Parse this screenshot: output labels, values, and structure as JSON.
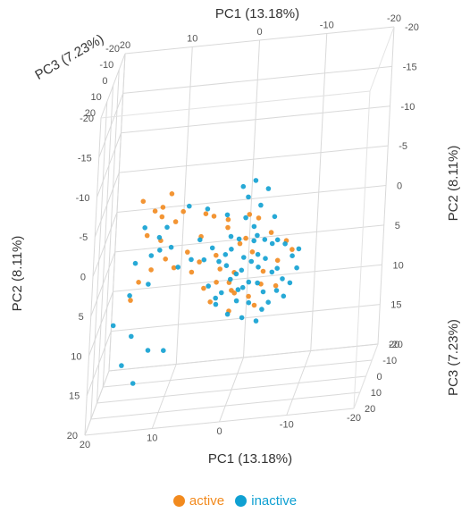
{
  "chart_data": {
    "type": "scatter",
    "projection": "3d",
    "title": "",
    "axes": {
      "x": {
        "label": "PC1 (13.18%)",
        "range": [
          20,
          -20
        ],
        "ticks": [
          "20",
          "10",
          "0",
          "-10",
          "-20"
        ]
      },
      "y": {
        "label": "PC2 (8.11%)",
        "range": [
          -20,
          20
        ],
        "ticks": [
          "-20",
          "-15",
          "-10",
          "-5",
          "0",
          "5",
          "10",
          "15",
          "20"
        ]
      },
      "z": {
        "label": "PC3 (7.23%)",
        "range": [
          -20,
          20
        ],
        "ticks": [
          "-20",
          "-10",
          "0",
          "10",
          "20"
        ]
      }
    },
    "grid": true,
    "legend": {
      "placement": "bottom"
    },
    "series": [
      {
        "name": "active",
        "color": "#F28A1E",
        "points": [
          [
            12,
            -3,
            -5
          ],
          [
            13,
            -3,
            -3
          ],
          [
            15,
            -4,
            -5
          ],
          [
            11,
            -4,
            -8
          ],
          [
            12,
            -2,
            -4
          ],
          [
            9,
            -2,
            -6
          ],
          [
            10,
            -1,
            -5
          ],
          [
            12,
            1,
            -4
          ],
          [
            14,
            0,
            -3
          ],
          [
            11,
            3,
            -2
          ],
          [
            13,
            4,
            -1
          ],
          [
            10,
            5,
            -6
          ],
          [
            15,
            6,
            -4
          ],
          [
            16,
            8,
            -3
          ],
          [
            8,
            3,
            -5
          ],
          [
            5,
            -3,
            2
          ],
          [
            4,
            -2,
            -1
          ],
          [
            2,
            -1,
            -3
          ],
          [
            6,
            4,
            -3
          ],
          [
            3,
            6,
            1
          ],
          [
            0,
            2,
            -2
          ],
          [
            -2,
            3,
            -1
          ],
          [
            1,
            6,
            2
          ],
          [
            -1,
            1,
            0
          ],
          [
            2,
            0,
            -3
          ],
          [
            -3,
            -2,
            3
          ],
          [
            0,
            7,
            4
          ],
          [
            -2,
            8,
            2
          ],
          [
            4,
            9,
            -2
          ],
          [
            1,
            10,
            0
          ],
          [
            -4,
            5,
            2
          ],
          [
            -5,
            0,
            3
          ],
          [
            -6,
            4,
            1
          ],
          [
            -7,
            2,
            -1
          ],
          [
            -3,
            9,
            3
          ],
          [
            6,
            1,
            -4
          ],
          [
            7,
            5,
            -2
          ],
          [
            -8,
            3,
            0
          ],
          [
            3,
            2,
            4
          ],
          [
            0,
            4,
            6
          ],
          [
            2,
            3,
            8
          ],
          [
            -1,
            -1,
            -5
          ],
          [
            5,
            7,
            -1
          ],
          [
            -4,
            6,
            5
          ],
          [
            1,
            8,
            -3
          ],
          [
            -6,
            7,
            2
          ]
        ]
      },
      {
        "name": "inactive",
        "color": "#0FA0D2",
        "points": [
          [
            11,
            -1,
            -2
          ],
          [
            12,
            0,
            -1
          ],
          [
            13,
            2,
            0
          ],
          [
            14,
            -2,
            2
          ],
          [
            10,
            1,
            1
          ],
          [
            9,
            4,
            -1
          ],
          [
            13,
            5,
            3
          ],
          [
            15,
            2,
            4
          ],
          [
            16,
            7,
            -1
          ],
          [
            18,
            10,
            2
          ],
          [
            15,
            11,
            5
          ],
          [
            16,
            14,
            8
          ],
          [
            12,
            12,
            10
          ],
          [
            10,
            13,
            6
          ],
          [
            14,
            16,
            10
          ],
          [
            12,
            2,
            -3
          ],
          [
            8,
            -3,
            -4
          ],
          [
            0,
            -5,
            -3
          ],
          [
            -1,
            -4,
            -1
          ],
          [
            -2,
            0,
            -2
          ],
          [
            0,
            1,
            0
          ],
          [
            1,
            2,
            1
          ],
          [
            2,
            3,
            -1
          ],
          [
            -1,
            3,
            2
          ],
          [
            -2,
            4,
            0
          ],
          [
            -3,
            5,
            -1
          ],
          [
            0,
            5,
            2
          ],
          [
            1,
            6,
            0
          ],
          [
            -1,
            7,
            1
          ],
          [
            2,
            7,
            3
          ],
          [
            -2,
            6,
            3
          ],
          [
            -3,
            3,
            1
          ],
          [
            -4,
            4,
            -1
          ],
          [
            -5,
            2,
            0
          ],
          [
            -4,
            1,
            2
          ],
          [
            -6,
            5,
            1
          ],
          [
            -5,
            6,
            -2
          ],
          [
            -3,
            7,
            -1
          ],
          [
            -4,
            8,
            0
          ],
          [
            -2,
            9,
            1
          ],
          [
            0,
            9,
            -1
          ],
          [
            1,
            10,
            2
          ],
          [
            3,
            8,
            1
          ],
          [
            4,
            6,
            3
          ],
          [
            3,
            4,
            -2
          ],
          [
            5,
            3,
            1
          ],
          [
            -1,
            -2,
            2
          ],
          [
            -3,
            -3,
            0
          ],
          [
            -5,
            -1,
            -2
          ],
          [
            -7,
            2,
            1
          ],
          [
            -8,
            4,
            -1
          ],
          [
            -6,
            8,
            0
          ],
          [
            -9,
            5,
            2
          ],
          [
            -7,
            6,
            3
          ],
          [
            2,
            -2,
            -1
          ],
          [
            -2,
            2,
            -3
          ],
          [
            -3,
            0,
            4
          ],
          [
            -1,
            4,
            5
          ],
          [
            0,
            8,
            -3
          ],
          [
            -4,
            10,
            1
          ],
          [
            -5,
            9,
            2
          ],
          [
            2,
            5,
            -4
          ],
          [
            4,
            2,
            -1
          ],
          [
            -2,
            -6,
            -1
          ],
          [
            -4,
            -5,
            0
          ],
          [
            6,
            1,
            -2
          ],
          [
            7,
            3,
            0
          ],
          [
            -8,
            7,
            1
          ],
          [
            -6,
            1,
            3
          ],
          [
            1,
            0,
            3
          ],
          [
            5,
            -3,
            -1
          ],
          [
            -9,
            3,
            0
          ],
          [
            3,
            9,
            0
          ],
          [
            -1,
            11,
            0
          ],
          [
            -3,
            12,
            -2
          ],
          [
            -7,
            9,
            -1
          ]
        ]
      }
    ]
  }
}
